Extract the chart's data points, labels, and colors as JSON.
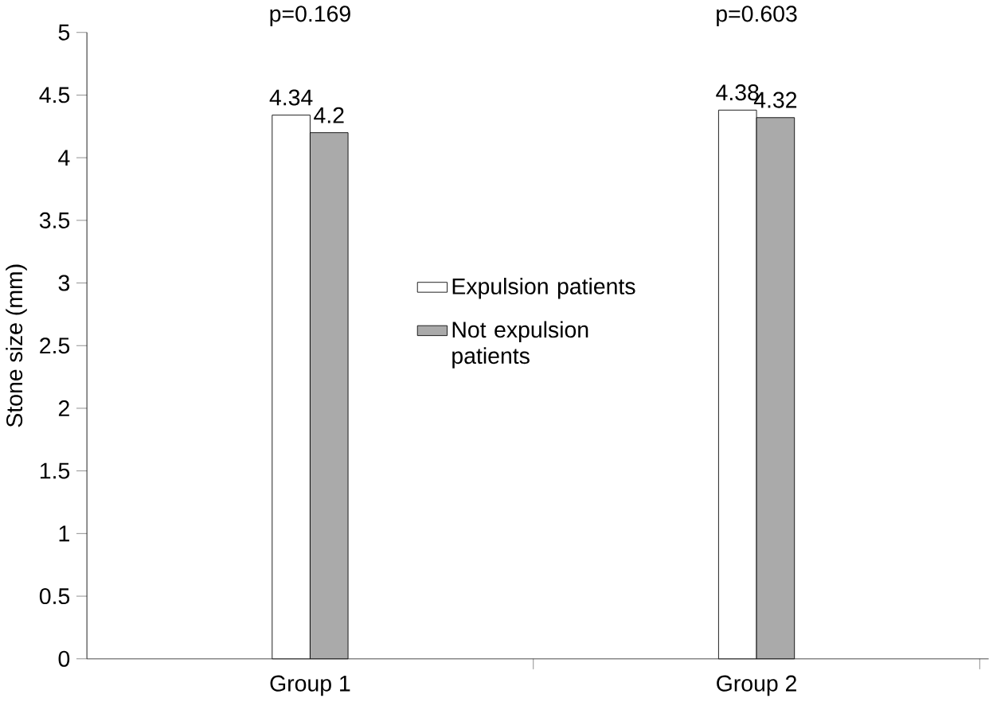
{
  "chart_data": {
    "type": "bar",
    "ylabel": "Stone size (mm)",
    "categories": [
      "Group 1",
      "Group 2"
    ],
    "series": [
      {
        "name": "Expulsion patients",
        "color": "#ffffff",
        "values": [
          4.34,
          4.38
        ]
      },
      {
        "name": "Not expulsion patients",
        "color": "#aaaaaa",
        "values": [
          4.2,
          4.32
        ]
      }
    ],
    "ylim": [
      0,
      5
    ],
    "yticks": [
      0,
      0.5,
      1,
      1.5,
      2,
      2.5,
      3,
      3.5,
      4,
      4.5,
      5
    ],
    "data_labels": true,
    "legend": "center",
    "grid": false,
    "annotations": [
      "p=0.169",
      "p=0.603"
    ]
  }
}
